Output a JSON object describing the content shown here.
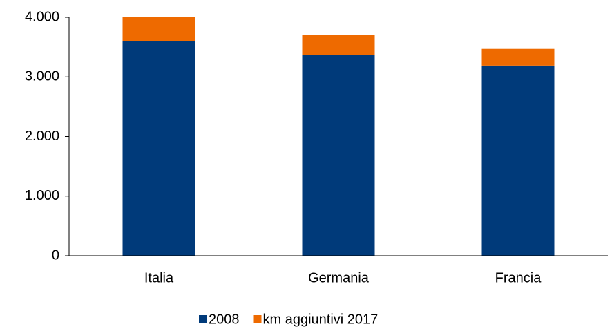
{
  "chart_data": {
    "type": "stacked_bar",
    "categories": [
      "Italia",
      "Germania",
      "Francia"
    ],
    "series": [
      {
        "name": "2008",
        "color": "#003a7a",
        "values": [
          3600,
          3370,
          3190
        ]
      },
      {
        "name": "km aggiuntivi 2017",
        "color": "#ee6a00",
        "values": [
          410,
          330,
          280
        ]
      }
    ],
    "ylim": [
      0,
      4000
    ],
    "yticks": [
      0,
      {
        "value": 1000,
        "label": "1.000"
      },
      {
        "value": 2000,
        "label": "2.000"
      },
      {
        "value": 3000,
        "label": "3.000"
      },
      {
        "value": 4000,
        "label": "4.000"
      }
    ],
    "legend": "bottom"
  }
}
